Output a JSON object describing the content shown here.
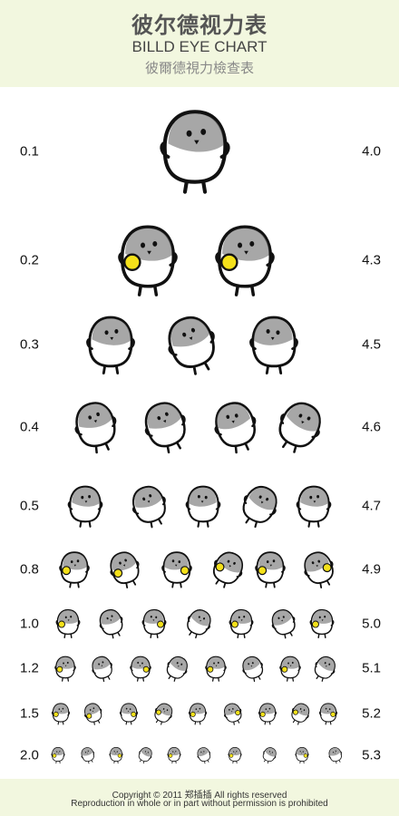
{
  "header": {
    "title_zh": "彼尔德视力表",
    "title_en": "BILLD EYE CHART",
    "title_tw": "彼爾德視力檢查表"
  },
  "rows": [
    {
      "left": "0.1",
      "right": "4.0",
      "count": 1
    },
    {
      "left": "0.2",
      "right": "4.3",
      "count": 2
    },
    {
      "left": "0.3",
      "right": "4.5",
      "count": 3
    },
    {
      "left": "0.4",
      "right": "4.6",
      "count": 4
    },
    {
      "left": "0.5",
      "right": "4.7",
      "count": 5
    },
    {
      "left": "0.8",
      "right": "4.9",
      "count": 6
    },
    {
      "left": "1.0",
      "right": "5.0",
      "count": 7
    },
    {
      "left": "1.2",
      "right": "5.1",
      "count": 8
    },
    {
      "left": "1.5",
      "right": "5.2",
      "count": 9
    },
    {
      "left": "2.0",
      "right": "5.3",
      "count": 10
    }
  ],
  "footer": {
    "copyright": "Copyright © 2011 郑插插 All rights reserved",
    "notice": "Reproduction in whole or in part without permission is prohibited"
  },
  "colors": {
    "band": "#f2f7df",
    "bird_gray": "#8a8a8a",
    "accent_yellow": "#f5e11a"
  }
}
